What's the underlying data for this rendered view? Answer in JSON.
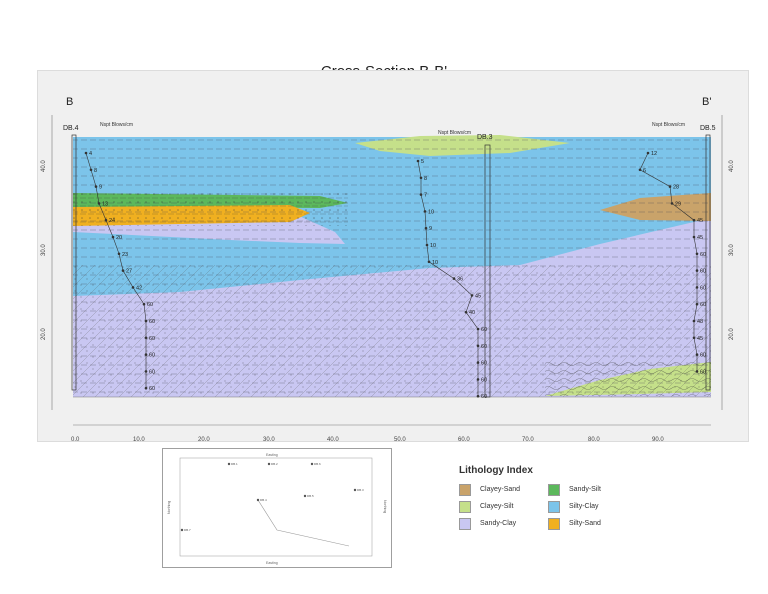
{
  "title": "Cross-Section B-B'",
  "section_start": "B",
  "section_end": "B'",
  "x_ticks": [
    "0.0",
    "10.0",
    "20.0",
    "30.0",
    "40.0",
    "50.0",
    "60.0",
    "70.0",
    "80.0",
    "90.0"
  ],
  "y_ticks": [
    "40.0",
    "30.0",
    "20.0"
  ],
  "boreholes": [
    {
      "id": "DB.4",
      "spt_header": "Nspt\nBlows/cm",
      "spt": [
        "4",
        "8",
        "9",
        "13",
        "24",
        "20",
        "23",
        "27",
        "42",
        "60",
        "60",
        "60",
        "60",
        "60",
        "60"
      ]
    },
    {
      "id": "DB.3",
      "spt_header": "Nspt\nBlows/cm",
      "spt": [
        "5",
        "8",
        "7",
        "10",
        "9",
        "10",
        "10",
        "36",
        "45",
        "40",
        "60",
        "60",
        "60",
        "60",
        "60"
      ]
    },
    {
      "id": "DB.5",
      "spt_header": "Nspt\nBlows/cm",
      "spt": [
        "12",
        "6",
        "28",
        "29",
        "45",
        "45",
        "60",
        "60",
        "60",
        "60",
        "48",
        "45",
        "60",
        "60"
      ]
    }
  ],
  "legend": {
    "title": "Lithology Index",
    "items": [
      {
        "label": "Clayey-Sand",
        "color": "#c9a36a"
      },
      {
        "label": "Sandy-Silt",
        "color": "#5cb85c"
      },
      {
        "label": "Clayey-Silt",
        "color": "#c5e08a"
      },
      {
        "label": "Silty-Clay",
        "color": "#7cc4ea"
      },
      {
        "label": "Sandy-Clay",
        "color": "#c9c7f2"
      },
      {
        "label": "Silty-Sand",
        "color": "#f0b020"
      }
    ]
  },
  "location_map": {
    "x_label": "Easting",
    "y_label": "Northing",
    "points": [
      "DB.1",
      "DB.2",
      "DB.6",
      "DB.3",
      "DB.4",
      "DB.5",
      "DB.7"
    ]
  }
}
